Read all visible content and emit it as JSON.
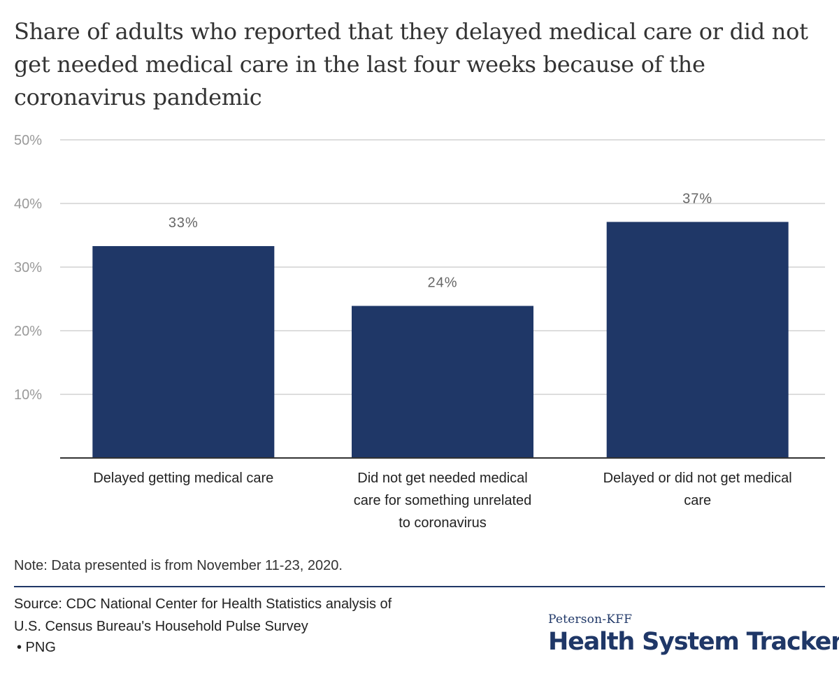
{
  "title": "Share of adults who reported that they delayed medical care or did not get needed medical care in the last four weeks because of the coronavirus pandemic",
  "chart_data": {
    "type": "bar",
    "title": "Share of adults who reported that they delayed medical care or did not get needed medical care in the last four weeks because of the coronavirus pandemic",
    "categories": [
      [
        "Delayed getting medical care"
      ],
      [
        "Did not get needed medical",
        "care for something unrelated",
        "to coronavirus"
      ],
      [
        "Delayed or did not get medical",
        "care"
      ]
    ],
    "values": [
      33.3,
      23.9,
      37.1
    ],
    "data_labels": [
      "33%",
      "24%",
      "37%"
    ],
    "y_ticks": [
      10,
      20,
      30,
      40,
      50
    ],
    "y_tick_labels": [
      "10%",
      "20%",
      "30%",
      "40%",
      "50%"
    ],
    "ylim": [
      0,
      50
    ],
    "xlabel": "",
    "ylabel": "",
    "grid": true,
    "colors": {
      "bar": "#1f3767",
      "grid": "#dddddd",
      "axis": "#333333",
      "tick_label": "#999999",
      "data_label": "#666666"
    }
  },
  "footer": {
    "note": "Note: Data presented is from November 11-23, 2020.",
    "source_line1": "Source: CDC National Center for Health Statistics analysis of",
    "source_line2": "U.S. Census Bureau's Household Pulse Survey",
    "png_link": "• PNG"
  },
  "logo": {
    "top": "Peterson-KFF",
    "main": "Health System Tracker",
    "color": "#1f3767"
  }
}
